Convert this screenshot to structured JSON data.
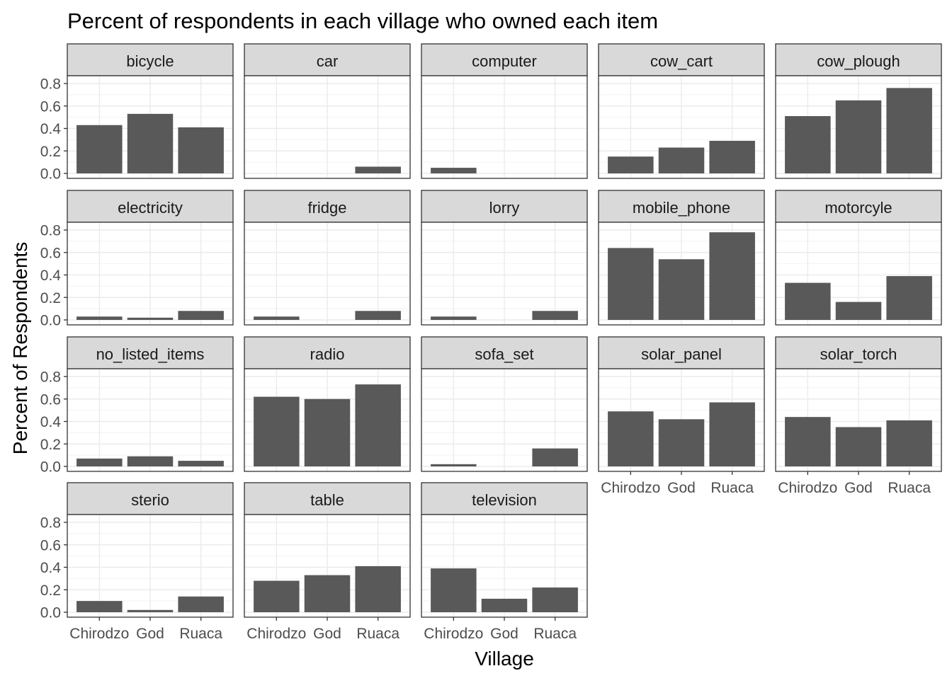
{
  "chart_data": {
    "type": "bar",
    "title": "Percent of respondents in each village who owned each item",
    "xlabel": "Village",
    "ylabel": "Percent of Respondents",
    "categories": [
      "Chirodzo",
      "God",
      "Ruaca"
    ],
    "ylim": [
      0,
      0.8
    ],
    "yticks": [
      "0.0",
      "0.2",
      "0.4",
      "0.6",
      "0.8"
    ],
    "grid": true,
    "layout": "facet grid, 5 columns, shared y axis",
    "bar_color": "#595959",
    "strip_color": "#d9d9d9",
    "panels": [
      {
        "name": "bicycle",
        "values": [
          0.43,
          0.53,
          0.41
        ]
      },
      {
        "name": "car",
        "values": [
          0.0,
          0.0,
          0.06
        ]
      },
      {
        "name": "computer",
        "values": [
          0.05,
          0.0,
          0.0
        ]
      },
      {
        "name": "cow_cart",
        "values": [
          0.15,
          0.23,
          0.29
        ]
      },
      {
        "name": "cow_plough",
        "values": [
          0.51,
          0.65,
          0.76
        ]
      },
      {
        "name": "electricity",
        "values": [
          0.03,
          0.02,
          0.08
        ]
      },
      {
        "name": "fridge",
        "values": [
          0.03,
          0.0,
          0.08
        ]
      },
      {
        "name": "lorry",
        "values": [
          0.03,
          0.0,
          0.08
        ]
      },
      {
        "name": "mobile_phone",
        "values": [
          0.64,
          0.54,
          0.78
        ]
      },
      {
        "name": "motorcyle",
        "values": [
          0.33,
          0.16,
          0.39
        ]
      },
      {
        "name": "no_listed_items",
        "values": [
          0.07,
          0.09,
          0.05
        ]
      },
      {
        "name": "radio",
        "values": [
          0.62,
          0.6,
          0.73
        ]
      },
      {
        "name": "sofa_set",
        "values": [
          0.02,
          0.0,
          0.16
        ]
      },
      {
        "name": "solar_panel",
        "values": [
          0.49,
          0.42,
          0.57
        ]
      },
      {
        "name": "solar_torch",
        "values": [
          0.44,
          0.35,
          0.41
        ]
      },
      {
        "name": "sterio",
        "values": [
          0.1,
          0.02,
          0.14
        ]
      },
      {
        "name": "table",
        "values": [
          0.28,
          0.33,
          0.41
        ]
      },
      {
        "name": "television",
        "values": [
          0.39,
          0.12,
          0.22
        ]
      }
    ]
  }
}
